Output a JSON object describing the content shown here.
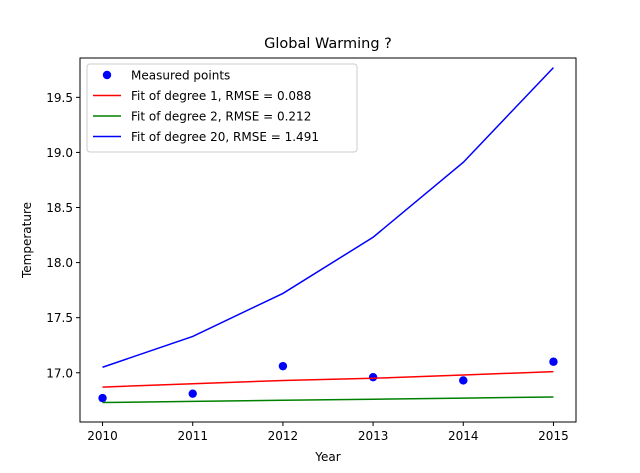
{
  "chart_data": {
    "type": "line",
    "title": "Global Warming ?",
    "xlabel": "Year",
    "ylabel": "Temperature",
    "xlim": [
      2009.75,
      2015.25
    ],
    "ylim": [
      16.553,
      19.857
    ],
    "xticks": [
      2010,
      2011,
      2012,
      2013,
      2014,
      2015
    ],
    "xtick_labels": [
      "2010",
      "2011",
      "2012",
      "2013",
      "2014",
      "2015"
    ],
    "yticks": [
      17.0,
      17.5,
      18.0,
      18.5,
      19.0,
      19.5
    ],
    "ytick_labels": [
      "17.0",
      "17.5",
      "18.0",
      "18.5",
      "19.0",
      "19.5"
    ],
    "grid": false,
    "legend_position": "top-left",
    "x": [
      2010,
      2011,
      2012,
      2013,
      2014,
      2015
    ],
    "series": [
      {
        "name": "Measured points",
        "kind": "scatter",
        "color": "#0000ff",
        "values": [
          16.77,
          16.81,
          17.06,
          16.96,
          16.93,
          17.1
        ]
      },
      {
        "name": "Fit of degree 1, RMSE = 0.088",
        "kind": "line",
        "color": "#ff0000",
        "values": [
          16.87,
          16.9,
          16.93,
          16.95,
          16.98,
          17.01
        ]
      },
      {
        "name": "Fit of degree 2, RMSE = 0.212",
        "kind": "line",
        "color": "#008000",
        "values": [
          16.73,
          16.74,
          16.75,
          16.76,
          16.77,
          16.78
        ]
      },
      {
        "name": "Fit of degree 20, RMSE = 1.491",
        "kind": "line",
        "color": "#0000ff",
        "values": [
          17.05,
          17.33,
          17.72,
          18.23,
          18.91,
          19.77
        ]
      }
    ]
  }
}
